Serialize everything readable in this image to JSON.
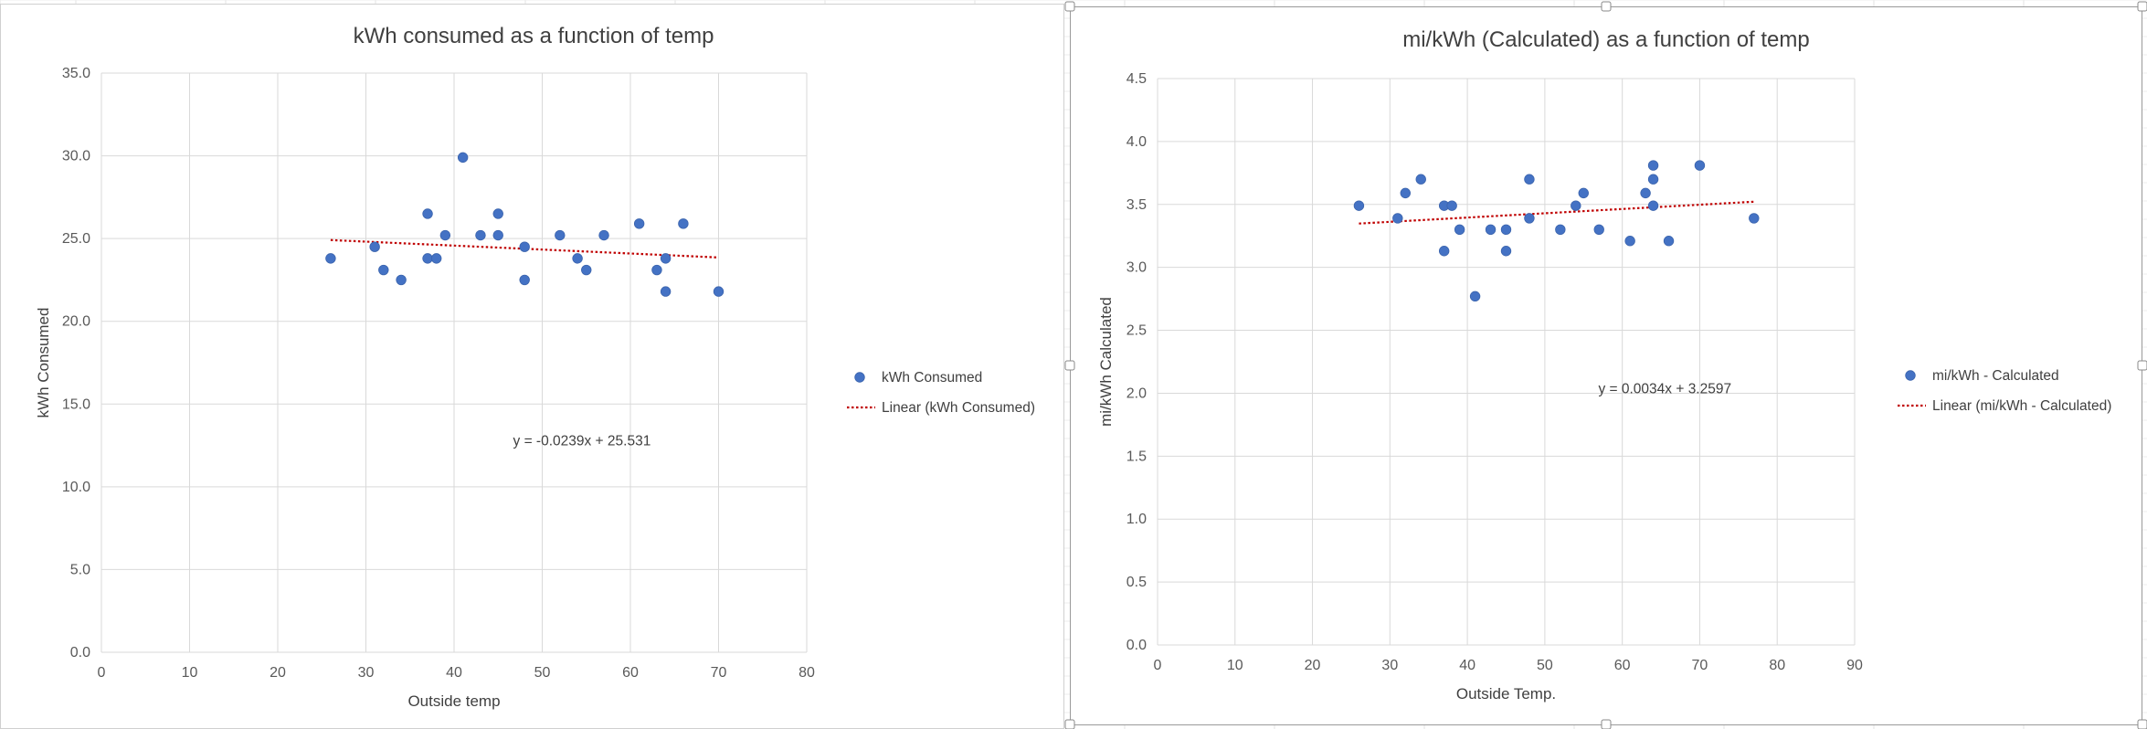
{
  "chart_data": [
    {
      "type": "scatter",
      "title": "kWh consumed as a function of temp",
      "xlabel": "Outside temp",
      "ylabel": "kWh Consumed",
      "xlim": [
        0,
        80
      ],
      "ylim": [
        0,
        35
      ],
      "x_ticks": [
        "0",
        "10",
        "20",
        "30",
        "40",
        "50",
        "60",
        "70",
        "80"
      ],
      "y_ticks": [
        "0.0",
        "5.0",
        "10.0",
        "15.0",
        "20.0",
        "25.0",
        "30.0",
        "35.0"
      ],
      "grid": true,
      "legend_position": "right",
      "series": [
        {
          "name": "kWh Consumed",
          "color": "#4472C4",
          "points": [
            [
              26,
              23.8
            ],
            [
              31,
              24.5
            ],
            [
              32,
              23.1
            ],
            [
              34,
              22.5
            ],
            [
              37,
              26.5
            ],
            [
              37,
              23.8
            ],
            [
              38,
              23.8
            ],
            [
              39,
              25.2
            ],
            [
              41,
              29.9
            ],
            [
              43,
              25.2
            ],
            [
              45,
              25.2
            ],
            [
              45,
              26.5
            ],
            [
              48,
              24.5
            ],
            [
              48,
              22.5
            ],
            [
              52,
              25.2
            ],
            [
              54,
              23.8
            ],
            [
              55,
              23.1
            ],
            [
              57,
              25.2
            ],
            [
              61,
              25.9
            ],
            [
              63,
              23.1
            ],
            [
              64,
              23.8
            ],
            [
              64,
              21.8
            ],
            [
              66,
              25.9
            ],
            [
              70,
              21.8
            ]
          ]
        }
      ],
      "trendline": {
        "name": "Linear (kWh Consumed)",
        "color": "#C00000",
        "slope": -0.0239,
        "intercept": 25.531,
        "x_range": [
          26,
          70
        ],
        "equation_label": "y = -0.0239x + 25.531"
      }
    },
    {
      "type": "scatter",
      "title": "mi/kWh (Calculated) as a function of temp",
      "xlabel": "Outside Temp.",
      "ylabel": "mi/kWh Calculated",
      "xlim": [
        0,
        90
      ],
      "ylim": [
        0,
        4.5
      ],
      "x_ticks": [
        "0",
        "10",
        "20",
        "30",
        "40",
        "50",
        "60",
        "70",
        "80",
        "90"
      ],
      "y_ticks": [
        "0.0",
        "0.5",
        "1.0",
        "1.5",
        "2.0",
        "2.5",
        "3.0",
        "3.5",
        "4.0",
        "4.5"
      ],
      "grid": true,
      "legend_position": "right",
      "series": [
        {
          "name": "mi/kWh - Calculated",
          "color": "#4472C4",
          "points": [
            [
              26,
              3.49
            ],
            [
              31,
              3.39
            ],
            [
              32,
              3.59
            ],
            [
              34,
              3.7
            ],
            [
              37,
              3.49
            ],
            [
              37,
              3.13
            ],
            [
              38,
              3.49
            ],
            [
              39,
              3.3
            ],
            [
              41,
              2.77
            ],
            [
              43,
              3.3
            ],
            [
              45,
              3.3
            ],
            [
              45,
              3.13
            ],
            [
              48,
              3.7
            ],
            [
              48,
              3.39
            ],
            [
              52,
              3.3
            ],
            [
              54,
              3.49
            ],
            [
              55,
              3.59
            ],
            [
              57,
              3.3
            ],
            [
              61,
              3.21
            ],
            [
              63,
              3.59
            ],
            [
              64,
              3.49
            ],
            [
              64,
              3.81
            ],
            [
              64,
              3.7
            ],
            [
              66,
              3.21
            ],
            [
              70,
              3.81
            ],
            [
              77,
              3.39
            ]
          ]
        }
      ],
      "trendline": {
        "name": "Linear (mi/kWh - Calculated)",
        "color": "#C00000",
        "slope": 0.0034,
        "intercept": 3.2597,
        "x_range": [
          26,
          77
        ],
        "equation_label": "y = 0.0034x + 3.2597"
      }
    }
  ]
}
